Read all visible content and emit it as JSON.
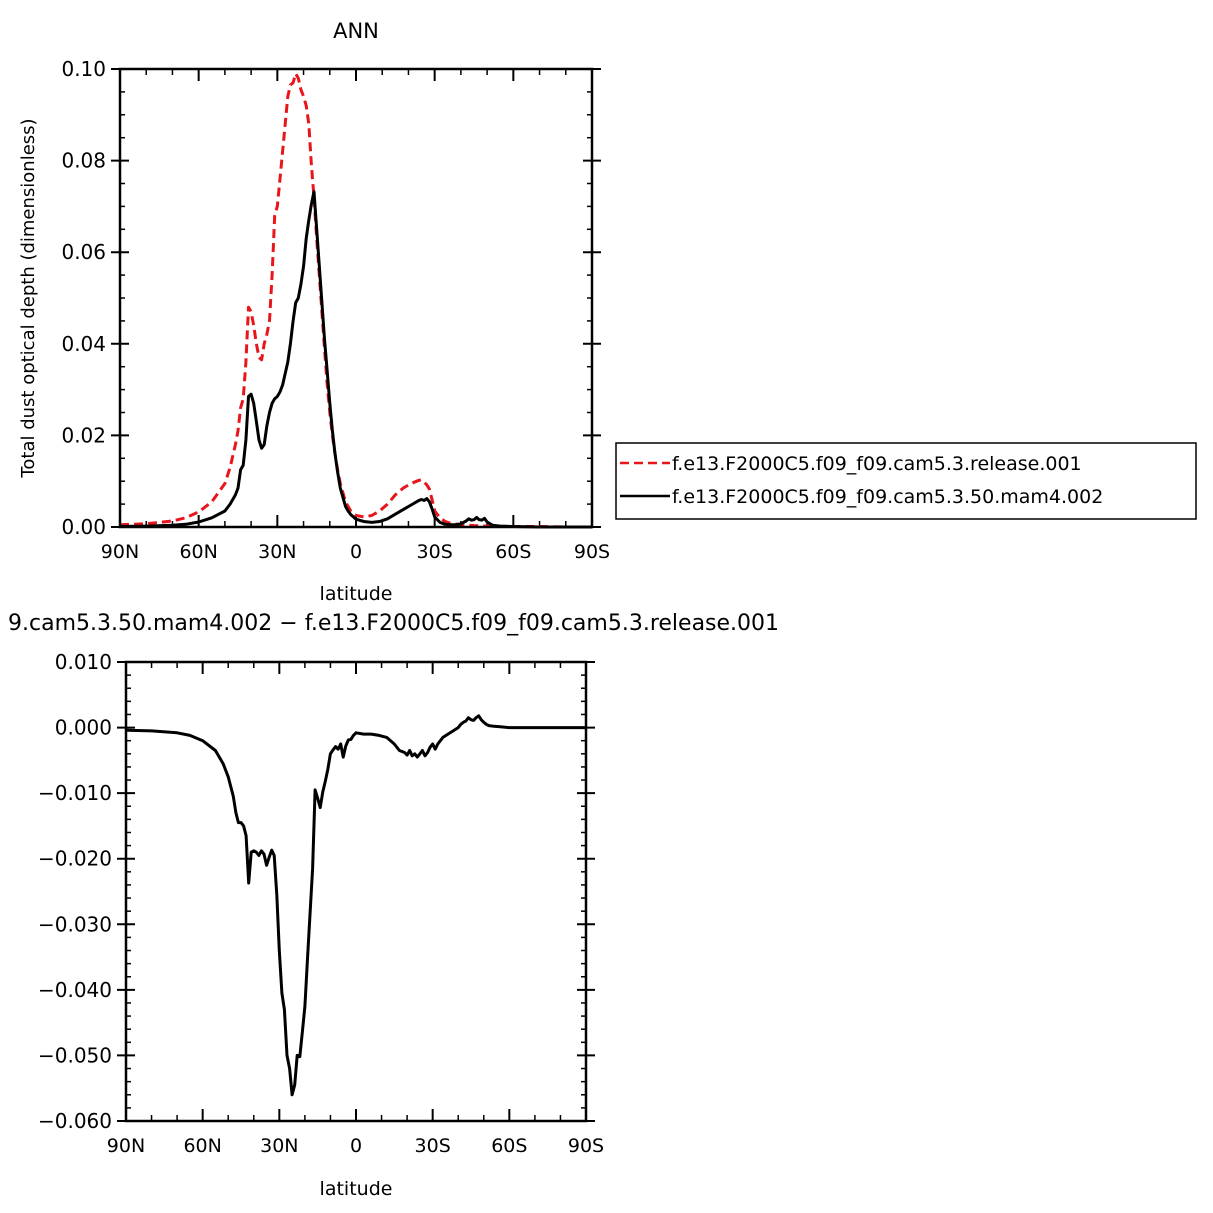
{
  "chart_data": [
    {
      "type": "line",
      "title": "ANN",
      "xlabel": "latitude",
      "ylabel": "Total dust optical depth (dimensionless)",
      "xlim": [
        90,
        -90
      ],
      "ylim": [
        0,
        0.1
      ],
      "xticks": [
        90,
        60,
        30,
        0,
        -30,
        -60,
        -90
      ],
      "xtick_labels": [
        "90N",
        "60N",
        "30N",
        "0",
        "30S",
        "60S",
        "90S"
      ],
      "yticks": [
        0,
        0.02,
        0.04,
        0.06,
        0.08,
        0.1
      ],
      "ytick_labels": [
        "0.00",
        "0.02",
        "0.04",
        "0.06",
        "0.08",
        "0.10"
      ],
      "legend_position": "right",
      "series": [
        {
          "name": "f.e13.F2000C5.f09_f09.cam5.3.release.001",
          "color": "#e8161b",
          "dash": "dashed",
          "x": [
            90,
            80,
            70,
            65,
            60,
            55,
            50,
            48,
            46,
            45,
            44,
            43,
            42,
            41,
            40,
            39,
            38,
            37,
            36,
            35,
            34,
            33,
            32,
            31,
            30,
            29,
            28,
            27,
            26,
            25,
            24,
            23,
            22,
            21,
            20,
            19,
            18,
            17,
            16,
            15,
            14,
            13,
            12,
            11,
            10,
            9,
            8,
            7,
            6,
            5,
            4,
            3,
            2,
            1,
            0,
            -3,
            -6,
            -9,
            -12,
            -15,
            -18,
            -21,
            -24,
            -25,
            -26,
            -27,
            -28,
            -29,
            -30,
            -32,
            -34,
            -36,
            -40,
            -45,
            -50,
            -60,
            -70,
            -80,
            -90
          ],
          "y": [
            0.0005,
            0.0007,
            0.0013,
            0.002,
            0.0033,
            0.0055,
            0.0095,
            0.013,
            0.018,
            0.021,
            0.026,
            0.028,
            0.036,
            0.048,
            0.047,
            0.044,
            0.04,
            0.037,
            0.0365,
            0.04,
            0.042,
            0.045,
            0.055,
            0.068,
            0.07,
            0.076,
            0.082,
            0.088,
            0.094,
            0.0965,
            0.097,
            0.099,
            0.098,
            0.0955,
            0.094,
            0.092,
            0.088,
            0.079,
            0.072,
            0.063,
            0.055,
            0.047,
            0.039,
            0.031,
            0.025,
            0.02,
            0.016,
            0.0125,
            0.0095,
            0.0075,
            0.0055,
            0.0045,
            0.0035,
            0.0029,
            0.0025,
            0.0022,
            0.0025,
            0.0035,
            0.005,
            0.007,
            0.0085,
            0.0095,
            0.0102,
            0.0103,
            0.0098,
            0.0092,
            0.0083,
            0.006,
            0.0035,
            0.002,
            0.0012,
            0.0008,
            0.0005,
            0.0003,
            0.0002,
            0.0001,
            0.0001,
            0.0,
            0.0
          ]
        },
        {
          "name": "f.e13.F2000C5.f09_f09.cam5.3.50.mam4.002",
          "color": "#000000",
          "dash": "solid",
          "x": [
            90,
            80,
            70,
            65,
            60,
            55,
            50,
            48,
            46,
            45,
            44,
            43,
            42,
            41,
            40,
            39,
            38,
            37,
            36,
            35,
            34,
            33,
            32,
            31,
            30,
            29,
            28,
            27,
            26,
            25,
            24,
            23,
            22,
            21,
            20,
            19,
            18,
            17,
            16,
            15,
            14,
            13,
            12,
            11,
            10,
            9,
            8,
            7,
            6,
            5,
            4,
            3,
            2,
            1,
            0,
            -3,
            -6,
            -9,
            -12,
            -15,
            -18,
            -21,
            -24,
            -25,
            -26,
            -27,
            -28,
            -29,
            -30,
            -32,
            -34,
            -36,
            -38,
            -40,
            -42,
            -43,
            -44,
            -45,
            -46,
            -47,
            -48,
            -49,
            -50,
            -52,
            -55,
            -60,
            -70,
            -80,
            -90
          ],
          "y": [
            0.0001,
            0.0002,
            0.0004,
            0.0006,
            0.0011,
            0.002,
            0.0035,
            0.005,
            0.007,
            0.0085,
            0.0125,
            0.0135,
            0.019,
            0.0285,
            0.029,
            0.027,
            0.023,
            0.019,
            0.0172,
            0.018,
            0.022,
            0.025,
            0.027,
            0.028,
            0.0285,
            0.0295,
            0.031,
            0.0335,
            0.036,
            0.04,
            0.045,
            0.049,
            0.05,
            0.053,
            0.057,
            0.063,
            0.067,
            0.0705,
            0.0732,
            0.065,
            0.057,
            0.049,
            0.041,
            0.034,
            0.027,
            0.021,
            0.016,
            0.012,
            0.0085,
            0.0065,
            0.0045,
            0.0035,
            0.0027,
            0.0022,
            0.0017,
            0.0012,
            0.001,
            0.0012,
            0.0018,
            0.0028,
            0.0038,
            0.0048,
            0.0058,
            0.006,
            0.0058,
            0.0062,
            0.0055,
            0.004,
            0.0022,
            0.001,
            0.0006,
            0.0005,
            0.0005,
            0.0007,
            0.0013,
            0.0018,
            0.0015,
            0.0016,
            0.0021,
            0.0016,
            0.0015,
            0.0019,
            0.0011,
            0.0004,
            0.0002,
            0.0001,
            0.0,
            0.0,
            0.0
          ]
        }
      ]
    },
    {
      "type": "line",
      "title": "9.cam5.3.50.mam4.002 − f.e13.F2000C5.f09_f09.cam5.3.release.001",
      "xlabel": "latitude",
      "xlim": [
        90,
        -90
      ],
      "ylim": [
        -0.06,
        0.01
      ],
      "xticks": [
        90,
        60,
        30,
        0,
        -30,
        -60,
        -90
      ],
      "xtick_labels": [
        "90N",
        "60N",
        "30N",
        "0",
        "30S",
        "60S",
        "90S"
      ],
      "yticks": [
        0.01,
        0.0,
        -0.01,
        -0.02,
        -0.03,
        -0.04,
        -0.05,
        -0.06
      ],
      "ytick_labels": [
        "0.010",
        "0.000",
        "−0.010",
        "−0.020",
        "−0.030",
        "−0.040",
        "−0.050",
        "−0.060"
      ],
      "series": [
        {
          "color": "#000000",
          "dash": "solid",
          "x": [
            90,
            80,
            70,
            65,
            60,
            55,
            52,
            50,
            48,
            47,
            46,
            45,
            44,
            43,
            42,
            41,
            40,
            39,
            38,
            37,
            36,
            35,
            34,
            33,
            32,
            31,
            30,
            29,
            28,
            27,
            26,
            25,
            24,
            23,
            22,
            21,
            20,
            19,
            18,
            17,
            16,
            15,
            14,
            13,
            12,
            11,
            10,
            9,
            8,
            7,
            6,
            5,
            4,
            3,
            2,
            1,
            0,
            -3,
            -6,
            -9,
            -12,
            -15,
            -17,
            -19,
            -20,
            -21,
            -22,
            -23,
            -24,
            -25,
            -26,
            -27,
            -28,
            -29,
            -30,
            -31,
            -32,
            -34,
            -36,
            -38,
            -40,
            -41,
            -42,
            -43,
            -44,
            -45,
            -46,
            -47,
            -48,
            -49,
            -50,
            -51,
            -52,
            -54,
            -57,
            -60,
            -70,
            -80,
            -90
          ],
          "y": [
            -0.0004,
            -0.0005,
            -0.0008,
            -0.0012,
            -0.002,
            -0.0035,
            -0.0055,
            -0.0075,
            -0.0105,
            -0.013,
            -0.0145,
            -0.0145,
            -0.015,
            -0.0165,
            -0.0237,
            -0.019,
            -0.0188,
            -0.019,
            -0.0195,
            -0.0188,
            -0.0193,
            -0.021,
            -0.0198,
            -0.0187,
            -0.0195,
            -0.0255,
            -0.034,
            -0.0405,
            -0.043,
            -0.05,
            -0.052,
            -0.056,
            -0.0545,
            -0.05,
            -0.0502,
            -0.0465,
            -0.0425,
            -0.0355,
            -0.0285,
            -0.0215,
            -0.0095,
            -0.0108,
            -0.0122,
            -0.0098,
            -0.0082,
            -0.0063,
            -0.004,
            -0.0034,
            -0.0029,
            -0.0033,
            -0.0025,
            -0.0045,
            -0.0028,
            -0.0019,
            -0.0018,
            -0.0012,
            -0.0008,
            -0.001,
            -0.001,
            -0.0012,
            -0.0015,
            -0.0025,
            -0.0035,
            -0.0038,
            -0.0042,
            -0.0035,
            -0.0043,
            -0.004,
            -0.0045,
            -0.004,
            -0.0035,
            -0.0043,
            -0.0038,
            -0.003,
            -0.0025,
            -0.0033,
            -0.0025,
            -0.0015,
            -0.001,
            -0.0005,
            0.0,
            0.0005,
            0.0008,
            0.001,
            0.0015,
            0.0012,
            0.0011,
            0.0015,
            0.0018,
            0.0012,
            0.0008,
            0.0005,
            0.0003,
            0.0002,
            0.0001,
            0.0,
            0.0,
            0.0,
            0.0
          ]
        }
      ]
    }
  ]
}
